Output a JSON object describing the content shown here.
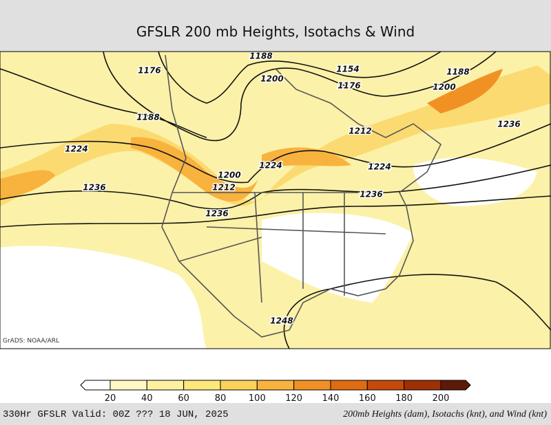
{
  "header": {
    "title": "GFSLR 200 mb Heights, Isotachs & Wind"
  },
  "map": {
    "credit": "GrADS: NOAA/ARL",
    "contour_labels": [
      "1188",
      "1176",
      "1200",
      "1154",
      "1176",
      "1188",
      "1200",
      "1188",
      "1212",
      "1236",
      "1224",
      "1224",
      "1200",
      "1224",
      "1212",
      "1236",
      "1236",
      "1236",
      "1248"
    ]
  },
  "colorbar": {
    "ticks": [
      20,
      40,
      60,
      80,
      100,
      120,
      140,
      160,
      180,
      200
    ],
    "colors": [
      "#ffffff",
      "#fff7c4",
      "#fff1a0",
      "#fde97a",
      "#fbd25a",
      "#f8b23e",
      "#f19124",
      "#e06c12",
      "#c54a0a",
      "#9f3006",
      "#5e1a08"
    ]
  },
  "footer": {
    "left": "330Hr GFSLR Valid: 00Z ??? 18 JUN, 2025",
    "right": "200mb Heights (dam), Isotachs (knt), and Wind (knt)"
  }
}
